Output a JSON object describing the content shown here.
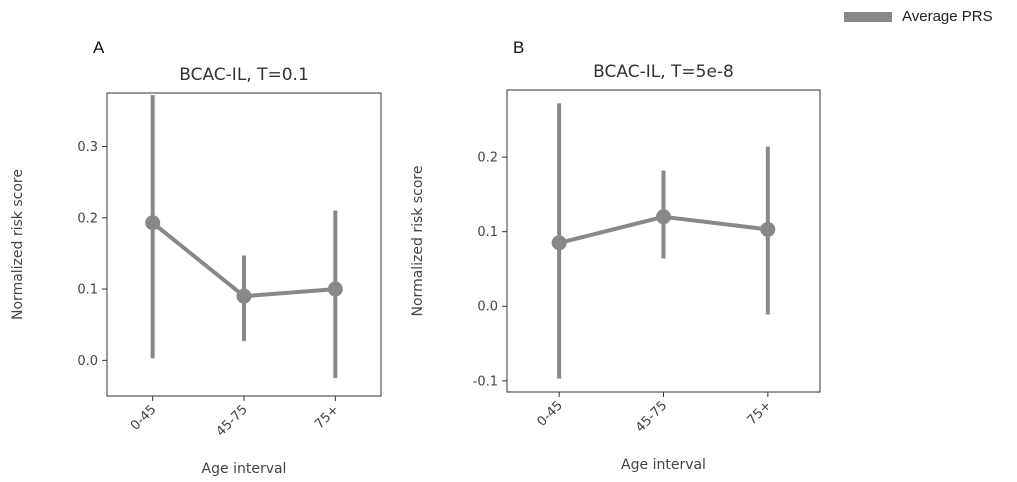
{
  "legend": {
    "label": "Average PRS",
    "color": "#888888"
  },
  "panels": [
    {
      "letter": "A"
    },
    {
      "letter": "B"
    }
  ],
  "chart_data": [
    {
      "type": "line",
      "title": "BCAC-IL, T=0.1",
      "xlabel": "Age interval",
      "ylabel": "Normalized risk score",
      "categories": [
        "0-45",
        "45-75",
        "75+"
      ],
      "yticks": [
        0.0,
        0.1,
        0.2,
        0.3
      ],
      "yticklabels": [
        "0.0",
        "0.1",
        "0.2",
        "0.3"
      ],
      "ylim": [
        -0.05,
        0.375
      ],
      "series": [
        {
          "name": "Average PRS",
          "color": "#888888",
          "values": [
            0.193,
            0.09,
            0.1
          ],
          "ci_low": [
            0.003,
            0.027,
            -0.025
          ],
          "ci_high": [
            0.372,
            0.147,
            0.21
          ]
        }
      ]
    },
    {
      "type": "line",
      "title": "BCAC-IL, T=5e-8",
      "xlabel": "Age interval",
      "ylabel": "Normalized risk score",
      "categories": [
        "0-45",
        "45-75",
        "75+"
      ],
      "yticks": [
        -0.1,
        0.0,
        0.1,
        0.2
      ],
      "yticklabels": [
        "-0.1",
        "0.0",
        "0.1",
        "0.2"
      ],
      "ylim": [
        -0.115,
        0.29
      ],
      "series": [
        {
          "name": "Average PRS",
          "color": "#888888",
          "values": [
            0.085,
            0.12,
            0.103
          ],
          "ci_low": [
            -0.097,
            0.064,
            -0.011
          ],
          "ci_high": [
            0.272,
            0.182,
            0.214
          ]
        }
      ]
    }
  ]
}
